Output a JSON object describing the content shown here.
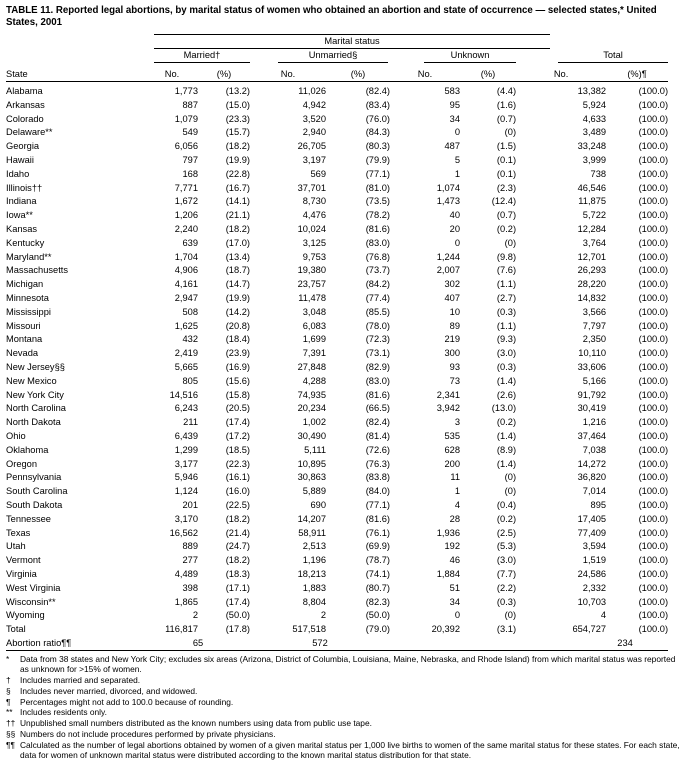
{
  "title": "TABLE 11. Reported legal abortions, by marital status of women who obtained an abortion and state of occurrence — selected states,* United States, 2001",
  "table": {
    "group_header": "Marital status",
    "col_state": "State",
    "groups": [
      "Married†",
      "Unmarried§",
      "Unknown",
      "Total"
    ],
    "sub_no": "No.",
    "sub_pct": "(%)",
    "sub_pct_total": "(%)¶",
    "rows": [
      [
        "Alabama",
        "1,773",
        "(13.2)",
        "11,026",
        "(82.4)",
        "583",
        "(4.4)",
        "13,382",
        "(100.0)"
      ],
      [
        "Arkansas",
        "887",
        "(15.0)",
        "4,942",
        "(83.4)",
        "95",
        "(1.6)",
        "5,924",
        "(100.0)"
      ],
      [
        "Colorado",
        "1,079",
        "(23.3)",
        "3,520",
        "(76.0)",
        "34",
        "(0.7)",
        "4,633",
        "(100.0)"
      ],
      [
        "Delaware**",
        "549",
        "(15.7)",
        "2,940",
        "(84.3)",
        "0",
        "(0)",
        "3,489",
        "(100.0)"
      ],
      [
        "Georgia",
        "6,056",
        "(18.2)",
        "26,705",
        "(80.3)",
        "487",
        "(1.5)",
        "33,248",
        "(100.0)"
      ],
      [
        "Hawaii",
        "797",
        "(19.9)",
        "3,197",
        "(79.9)",
        "5",
        "(0.1)",
        "3,999",
        "(100.0)"
      ],
      [
        "Idaho",
        "168",
        "(22.8)",
        "569",
        "(77.1)",
        "1",
        "(0.1)",
        "738",
        "(100.0)"
      ],
      [
        "Illinois††",
        "7,771",
        "(16.7)",
        "37,701",
        "(81.0)",
        "1,074",
        "(2.3)",
        "46,546",
        "(100.0)"
      ],
      [
        "Indiana",
        "1,672",
        "(14.1)",
        "8,730",
        "(73.5)",
        "1,473",
        "(12.4)",
        "11,875",
        "(100.0)"
      ],
      [
        "Iowa**",
        "1,206",
        "(21.1)",
        "4,476",
        "(78.2)",
        "40",
        "(0.7)",
        "5,722",
        "(100.0)"
      ],
      [
        "Kansas",
        "2,240",
        "(18.2)",
        "10,024",
        "(81.6)",
        "20",
        "(0.2)",
        "12,284",
        "(100.0)"
      ],
      [
        "Kentucky",
        "639",
        "(17.0)",
        "3,125",
        "(83.0)",
        "0",
        "(0)",
        "3,764",
        "(100.0)"
      ],
      [
        "Maryland**",
        "1,704",
        "(13.4)",
        "9,753",
        "(76.8)",
        "1,244",
        "(9.8)",
        "12,701",
        "(100.0)"
      ],
      [
        "Massachusetts",
        "4,906",
        "(18.7)",
        "19,380",
        "(73.7)",
        "2,007",
        "(7.6)",
        "26,293",
        "(100.0)"
      ],
      [
        "Michigan",
        "4,161",
        "(14.7)",
        "23,757",
        "(84.2)",
        "302",
        "(1.1)",
        "28,220",
        "(100.0)"
      ],
      [
        "Minnesota",
        "2,947",
        "(19.9)",
        "11,478",
        "(77.4)",
        "407",
        "(2.7)",
        "14,832",
        "(100.0)"
      ],
      [
        "Mississippi",
        "508",
        "(14.2)",
        "3,048",
        "(85.5)",
        "10",
        "(0.3)",
        "3,566",
        "(100.0)"
      ],
      [
        "Missouri",
        "1,625",
        "(20.8)",
        "6,083",
        "(78.0)",
        "89",
        "(1.1)",
        "7,797",
        "(100.0)"
      ],
      [
        "Montana",
        "432",
        "(18.4)",
        "1,699",
        "(72.3)",
        "219",
        "(9.3)",
        "2,350",
        "(100.0)"
      ],
      [
        "Nevada",
        "2,419",
        "(23.9)",
        "7,391",
        "(73.1)",
        "300",
        "(3.0)",
        "10,110",
        "(100.0)"
      ],
      [
        "New Jersey§§",
        "5,665",
        "(16.9)",
        "27,848",
        "(82.9)",
        "93",
        "(0.3)",
        "33,606",
        "(100.0)"
      ],
      [
        "New Mexico",
        "805",
        "(15.6)",
        "4,288",
        "(83.0)",
        "73",
        "(1.4)",
        "5,166",
        "(100.0)"
      ],
      [
        "New York City",
        "14,516",
        "(15.8)",
        "74,935",
        "(81.6)",
        "2,341",
        "(2.6)",
        "91,792",
        "(100.0)"
      ],
      [
        "North Carolina",
        "6,243",
        "(20.5)",
        "20,234",
        "(66.5)",
        "3,942",
        "(13.0)",
        "30,419",
        "(100.0)"
      ],
      [
        "North Dakota",
        "211",
        "(17.4)",
        "1,002",
        "(82.4)",
        "3",
        "(0.2)",
        "1,216",
        "(100.0)"
      ],
      [
        "Ohio",
        "6,439",
        "(17.2)",
        "30,490",
        "(81.4)",
        "535",
        "(1.4)",
        "37,464",
        "(100.0)"
      ],
      [
        "Oklahoma",
        "1,299",
        "(18.5)",
        "5,111",
        "(72.6)",
        "628",
        "(8.9)",
        "7,038",
        "(100.0)"
      ],
      [
        "Oregon",
        "3,177",
        "(22.3)",
        "10,895",
        "(76.3)",
        "200",
        "(1.4)",
        "14,272",
        "(100.0)"
      ],
      [
        "Pennsylvania",
        "5,946",
        "(16.1)",
        "30,863",
        "(83.8)",
        "11",
        "(0)",
        "36,820",
        "(100.0)"
      ],
      [
        "South Carolina",
        "1,124",
        "(16.0)",
        "5,889",
        "(84.0)",
        "1",
        "(0)",
        "7,014",
        "(100.0)"
      ],
      [
        "South Dakota",
        "201",
        "(22.5)",
        "690",
        "(77.1)",
        "4",
        "(0.4)",
        "895",
        "(100.0)"
      ],
      [
        "Tennessee",
        "3,170",
        "(18.2)",
        "14,207",
        "(81.6)",
        "28",
        "(0.2)",
        "17,405",
        "(100.0)"
      ],
      [
        "Texas",
        "16,562",
        "(21.4)",
        "58,911",
        "(76.1)",
        "1,936",
        "(2.5)",
        "77,409",
        "(100.0)"
      ],
      [
        "Utah",
        "889",
        "(24.7)",
        "2,513",
        "(69.9)",
        "192",
        "(5.3)",
        "3,594",
        "(100.0)"
      ],
      [
        "Vermont",
        "277",
        "(18.2)",
        "1,196",
        "(78.7)",
        "46",
        "(3.0)",
        "1,519",
        "(100.0)"
      ],
      [
        "Virginia",
        "4,489",
        "(18.3)",
        "18,213",
        "(74.1)",
        "1,884",
        "(7.7)",
        "24,586",
        "(100.0)"
      ],
      [
        "West Virginia",
        "398",
        "(17.1)",
        "1,883",
        "(80.7)",
        "51",
        "(2.2)",
        "2,332",
        "(100.0)"
      ],
      [
        "Wisconsin**",
        "1,865",
        "(17.4)",
        "8,804",
        "(82.3)",
        "34",
        "(0.3)",
        "10,703",
        "(100.0)"
      ],
      [
        "Wyoming",
        "2",
        "(50.0)",
        "2",
        "(50.0)",
        "0",
        "(0)",
        "4",
        "(100.0)"
      ],
      [
        "Total",
        "116,817",
        "(17.8)",
        "517,518",
        "(79.0)",
        "20,392",
        "(3.1)",
        "654,727",
        "(100.0)"
      ]
    ],
    "ratio_row": {
      "label": "Abortion ratio¶¶",
      "married": "65",
      "unmarried": "572",
      "unknown": "",
      "total": "234"
    }
  },
  "footnotes": [
    {
      "sym": "*",
      "text": "Data from 38 states and New York City; excludes six areas (Arizona, District of Columbia, Louisiana, Maine, Nebraska, and Rhode Island) from which marital status was reported as unknown for >15% of women."
    },
    {
      "sym": "†",
      "text": "Includes married and separated."
    },
    {
      "sym": "§",
      "text": "Includes never married, divorced, and widowed."
    },
    {
      "sym": "¶",
      "text": "Percentages might not add to 100.0 because of rounding."
    },
    {
      "sym": "**",
      "text": "Includes residents only."
    },
    {
      "sym": "††",
      "text": "Unpublished small numbers distributed as the known numbers using data from public use tape."
    },
    {
      "sym": "§§",
      "text": "Numbers do not include procedures performed by private physicians."
    },
    {
      "sym": "¶¶",
      "text": "Calculated as the number of legal abortions obtained by women of a given marital status per 1,000 live births to women of the same marital status for these states. For each state, data for women of unknown marital status were distributed according to the known marital status distribution for that state."
    }
  ]
}
